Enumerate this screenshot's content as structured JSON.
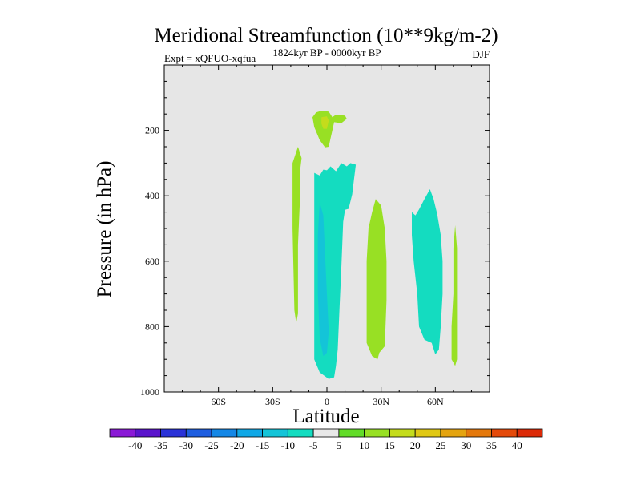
{
  "chart_data": {
    "type": "filled-contour",
    "title": "Meridional Streamfunction (10**9kg/m-2)",
    "left_subtitle": "Expt = xQFUO-xqfua",
    "center_subtitle": "1824kyr BP - 0000kyr BP",
    "right_subtitle": "DJF",
    "xlabel": "Latitude",
    "ylabel": "Pressure (in hPa)",
    "xlim": [
      -90,
      90
    ],
    "ylim": [
      1000,
      0
    ],
    "x_ticks": [
      {
        "value": -60,
        "label": "60S"
      },
      {
        "value": -30,
        "label": "30S"
      },
      {
        "value": 0,
        "label": "0"
      },
      {
        "value": 30,
        "label": "30N"
      },
      {
        "value": 60,
        "label": "60N"
      }
    ],
    "y_ticks": [
      {
        "value": 200,
        "label": "200"
      },
      {
        "value": 400,
        "label": "400"
      },
      {
        "value": 600,
        "label": "600"
      },
      {
        "value": 800,
        "label": "800"
      },
      {
        "value": 1000,
        "label": "1000"
      }
    ],
    "background_color": "#e6e6e6",
    "colorbar": {
      "labels": [
        "-40",
        "-35",
        "-30",
        "-25",
        "-20",
        "-15",
        "-10",
        "-5",
        "5",
        "10",
        "15",
        "20",
        "25",
        "30",
        "35",
        "40"
      ],
      "colors": [
        "#8a19d6",
        "#5a14cc",
        "#2a32d8",
        "#1e5ee0",
        "#1487e6",
        "#10a8e6",
        "#14c4d8",
        "#14dcc0",
        "#e8e8e8",
        "#62dc28",
        "#98e024",
        "#c4dc1c",
        "#e0c814",
        "#e4a410",
        "#e4780c",
        "#e44a0a",
        "#dc2a08"
      ]
    },
    "regions": [
      {
        "name": "upper-positive-cell",
        "level": 10,
        "points": [
          [
            -6,
            145
          ],
          [
            -3,
            140
          ],
          [
            1,
            143
          ],
          [
            3,
            160
          ],
          [
            5,
            152
          ],
          [
            10,
            155
          ],
          [
            11,
            165
          ],
          [
            8,
            178
          ],
          [
            4,
            175
          ],
          [
            3,
            200
          ],
          [
            2,
            225
          ],
          [
            1,
            250
          ],
          [
            -1,
            252
          ],
          [
            -4,
            230
          ],
          [
            -7,
            190
          ],
          [
            -8,
            160
          ]
        ]
      },
      {
        "name": "upper-positive-core",
        "level": 15,
        "points": [
          [
            -3,
            160
          ],
          [
            0,
            157
          ],
          [
            1,
            170
          ],
          [
            0,
            195
          ],
          [
            -2,
            195
          ],
          [
            -3,
            180
          ]
        ]
      },
      {
        "name": "sh-midlat-positive",
        "level": 10,
        "points": [
          [
            -16,
            250
          ],
          [
            -14,
            285
          ],
          [
            -15,
            330
          ],
          [
            -15,
            420
          ],
          [
            -16,
            550
          ],
          [
            -16,
            700
          ],
          [
            -16,
            760
          ],
          [
            -17,
            790
          ],
          [
            -18,
            750
          ],
          [
            -19,
            500
          ],
          [
            -19,
            300
          ]
        ]
      },
      {
        "name": "main-negative-cell",
        "level": -10,
        "points": [
          [
            -7,
            330
          ],
          [
            -4,
            338
          ],
          [
            -2,
            320
          ],
          [
            0,
            322
          ],
          [
            2,
            310
          ],
          [
            5,
            325
          ],
          [
            8,
            300
          ],
          [
            11,
            310
          ],
          [
            13,
            300
          ],
          [
            16,
            305
          ],
          [
            15,
            350
          ],
          [
            14,
            395
          ],
          [
            12,
            440
          ],
          [
            10,
            443
          ],
          [
            9,
            480
          ],
          [
            8,
            620
          ],
          [
            7,
            740
          ],
          [
            6,
            870
          ],
          [
            5,
            920
          ],
          [
            4,
            955
          ],
          [
            1,
            960
          ],
          [
            -4,
            940
          ],
          [
            -7,
            900
          ],
          [
            -7,
            800
          ],
          [
            -7,
            600
          ],
          [
            -7,
            420
          ]
        ]
      },
      {
        "name": "main-negative-core",
        "level": -15,
        "points": [
          [
            -4,
            420
          ],
          [
            -2,
            460
          ],
          [
            -1,
            580
          ],
          [
            0,
            700
          ],
          [
            1,
            815
          ],
          [
            0,
            880
          ],
          [
            -2,
            890
          ],
          [
            -4,
            835
          ],
          [
            -5,
            700
          ],
          [
            -5,
            520
          ]
        ]
      },
      {
        "name": "nh-subtropical-positive",
        "level": 10,
        "points": [
          [
            25,
            450
          ],
          [
            27,
            410
          ],
          [
            30,
            430
          ],
          [
            32,
            500
          ],
          [
            33,
            600
          ],
          [
            33,
            720
          ],
          [
            32,
            860
          ],
          [
            29,
            880
          ],
          [
            28,
            900
          ],
          [
            25,
            890
          ],
          [
            22,
            850
          ],
          [
            22,
            750
          ],
          [
            22,
            600
          ],
          [
            23,
            500
          ]
        ]
      },
      {
        "name": "nh-midlat-negative",
        "level": -10,
        "points": [
          [
            47,
            450
          ],
          [
            49,
            460
          ],
          [
            51,
            442
          ],
          [
            54,
            410
          ],
          [
            57,
            380
          ],
          [
            59,
            410
          ],
          [
            61,
            455
          ],
          [
            63,
            520
          ],
          [
            64,
            600
          ],
          [
            64,
            700
          ],
          [
            63,
            800
          ],
          [
            62,
            870
          ],
          [
            60,
            885
          ],
          [
            58,
            850
          ],
          [
            54,
            840
          ],
          [
            51,
            800
          ],
          [
            50,
            700
          ],
          [
            48,
            600
          ],
          [
            47,
            520
          ]
        ]
      },
      {
        "name": "nh-highlat-positive",
        "level": 10,
        "points": [
          [
            71,
            490
          ],
          [
            72,
            560
          ],
          [
            72,
            700
          ],
          [
            72,
            840
          ],
          [
            72,
            900
          ],
          [
            71,
            920
          ],
          [
            69,
            900
          ],
          [
            69,
            800
          ],
          [
            70,
            700
          ],
          [
            70,
            560
          ]
        ]
      }
    ]
  }
}
